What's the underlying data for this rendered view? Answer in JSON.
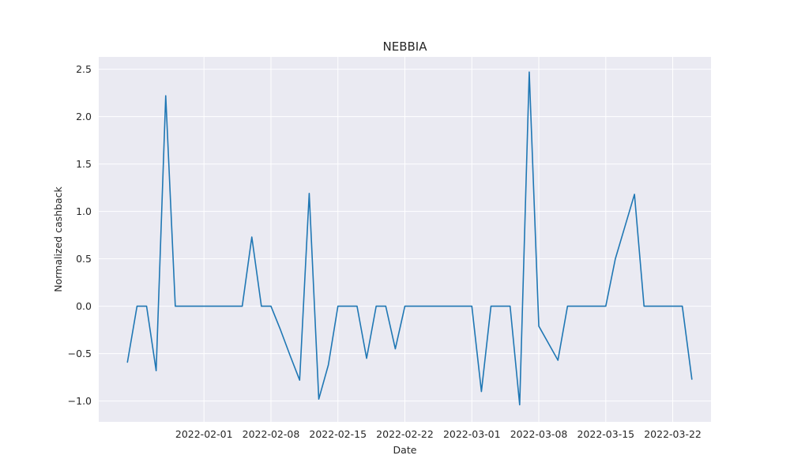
{
  "chart_data": {
    "type": "line",
    "title": "NEBBIA",
    "xlabel": "Date",
    "ylabel": "Normalized cashback",
    "x_type": "date",
    "x_ticks": [
      "2022-02-01",
      "2022-02-08",
      "2022-02-15",
      "2022-02-22",
      "2022-03-01",
      "2022-03-08",
      "2022-03-15",
      "2022-03-22"
    ],
    "y_ticks": [
      -1.0,
      -0.5,
      0.0,
      0.5,
      1.0,
      1.5,
      2.0,
      2.5
    ],
    "y_tick_labels": [
      "−1.0",
      "−0.5",
      "0.0",
      "0.5",
      "1.0",
      "1.5",
      "2.0",
      "2.5"
    ],
    "xlim": [
      "2022-01-21",
      "2022-03-26"
    ],
    "ylim": [
      -1.22,
      2.63
    ],
    "grid": true,
    "background_color": "#eaeaf2",
    "series": [
      {
        "color": "#1f77b4",
        "x": [
          "2022-01-24",
          "2022-01-25",
          "2022-01-26",
          "2022-01-27",
          "2022-01-28",
          "2022-01-29",
          "2022-01-30",
          "2022-01-31",
          "2022-02-01",
          "2022-02-02",
          "2022-02-03",
          "2022-02-04",
          "2022-02-05",
          "2022-02-06",
          "2022-02-07",
          "2022-02-08",
          "2022-02-09",
          "2022-02-10",
          "2022-02-11",
          "2022-02-12",
          "2022-02-13",
          "2022-02-14",
          "2022-02-15",
          "2022-02-16",
          "2022-02-17",
          "2022-02-18",
          "2022-02-19",
          "2022-02-20",
          "2022-02-21",
          "2022-02-22",
          "2022-02-23",
          "2022-02-24",
          "2022-02-25",
          "2022-02-26",
          "2022-02-27",
          "2022-02-28",
          "2022-03-01",
          "2022-03-02",
          "2022-03-03",
          "2022-03-04",
          "2022-03-05",
          "2022-03-06",
          "2022-03-07",
          "2022-03-08",
          "2022-03-09",
          "2022-03-10",
          "2022-03-11",
          "2022-03-12",
          "2022-03-13",
          "2022-03-14",
          "2022-03-15",
          "2022-03-16",
          "2022-03-17",
          "2022-03-18",
          "2022-03-19",
          "2022-03-20",
          "2022-03-21",
          "2022-03-22",
          "2022-03-23",
          "2022-03-24"
        ],
        "y": [
          -0.59,
          0.0,
          0.0,
          -0.68,
          2.22,
          0.0,
          0.0,
          0.0,
          0.0,
          0.0,
          0.0,
          0.0,
          0.0,
          0.73,
          0.0,
          0.0,
          -0.25,
          -0.52,
          -0.78,
          1.19,
          -0.98,
          -0.62,
          0.0,
          0.0,
          0.0,
          -0.55,
          0.0,
          0.0,
          -0.45,
          0.0,
          0.0,
          0.0,
          0.0,
          0.0,
          0.0,
          0.0,
          0.0,
          -0.9,
          0.0,
          0.0,
          0.0,
          -1.04,
          2.47,
          -0.21,
          -0.39,
          -0.57,
          0.0,
          0.0,
          0.0,
          0.0,
          0.0,
          0.5,
          0.84,
          1.18,
          0.0,
          0.0,
          0.0,
          0.0,
          0.0,
          -0.77
        ]
      }
    ]
  }
}
